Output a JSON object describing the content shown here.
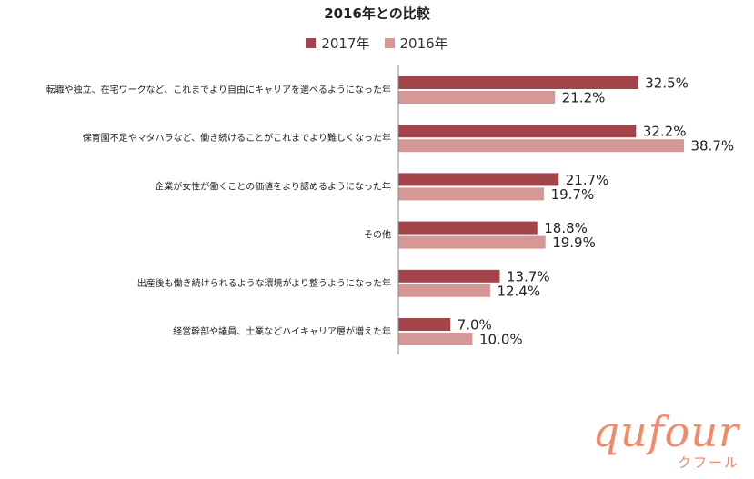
{
  "chart_data": {
    "type": "bar",
    "orientation": "horizontal",
    "title": "2016年との比較",
    "categories": [
      "転職や独立、在宅ワークなど、これまでより自由にキャリアを選べるようになった年",
      "保育園不足やマタハラなど、働き続けることがこれまでより難しくなった年",
      "企業が女性が働くことの価値をより認めるようになった年",
      "その他",
      "出産後も働き続けられるような環境がより整うようになった年",
      "経営幹部や議員、士業などハイキャリア層が増えた年"
    ],
    "series": [
      {
        "name": "2017年",
        "values": [
          32.5,
          32.2,
          21.7,
          18.8,
          13.7,
          7.0
        ],
        "labels": [
          "32.5%",
          "32.2%",
          "21.7%",
          "18.8%",
          "13.7%",
          "7.0%"
        ],
        "color": "#a3444a"
      },
      {
        "name": "2016年",
        "values": [
          21.2,
          38.7,
          19.7,
          19.9,
          12.4,
          10.0
        ],
        "labels": [
          "21.2%",
          "38.7%",
          "19.7%",
          "19.9%",
          "12.4%",
          "10.0%"
        ],
        "color": "#d69896"
      }
    ],
    "xlim": [
      0,
      100
    ],
    "grid": false,
    "legend_position": "top-center"
  },
  "brand": {
    "logo": "qufour",
    "sub": "クフール"
  }
}
